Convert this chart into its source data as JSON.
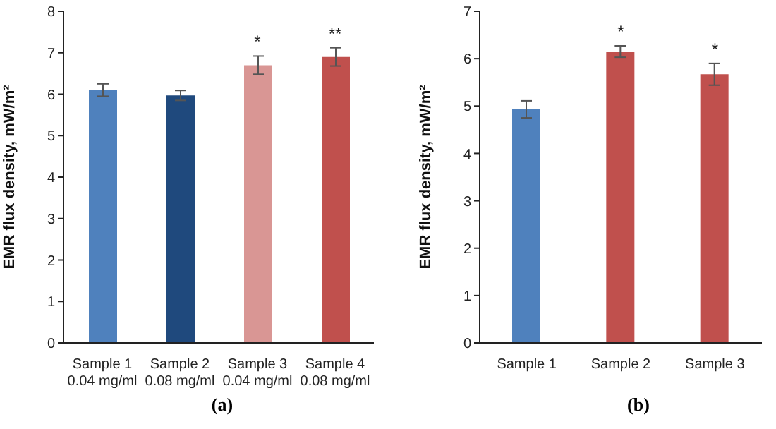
{
  "chart_data": [
    {
      "type": "bar",
      "ylabel": "EMR flux density, mW/m²",
      "categories": [
        "Sample 1\n0.04 mg/ml",
        "Sample 2\n0.08 mg/ml",
        "Sample 3\n0.04 mg/ml",
        "Sample 4\n0.08 mg/ml"
      ],
      "values": [
        6.1,
        5.97,
        6.7,
        6.9
      ],
      "errors": [
        0.15,
        0.12,
        0.22,
        0.22
      ],
      "colors": [
        "#4f81bd",
        "#1f497d",
        "#d99694",
        "#c0504d"
      ],
      "ylim": [
        0,
        8
      ],
      "yticks": [
        0,
        1,
        2,
        3,
        4,
        5,
        6,
        7,
        8
      ],
      "grid": false,
      "legend": false,
      "annotations": [
        "(a)",
        {
          "text": "*",
          "x": "Sample 3\n0.04 mg/ml",
          "y": 6.7
        },
        {
          "text": "**",
          "x": "Sample 4\n0.08 mg/ml",
          "y": 6.9
        }
      ]
    },
    {
      "type": "bar",
      "ylabel": "EMR flux density, mW/m²",
      "categories": [
        "Sample 1",
        "Sample 2",
        "Sample 3"
      ],
      "values": [
        4.93,
        6.15,
        5.67
      ],
      "errors": [
        0.18,
        0.12,
        0.23
      ],
      "colors": [
        "#4f81bd",
        "#c0504d",
        "#c0504d"
      ],
      "ylim": [
        0,
        7
      ],
      "yticks": [
        0,
        1,
        2,
        3,
        4,
        5,
        6,
        7
      ],
      "grid": false,
      "legend": false,
      "annotations": [
        "(b)",
        {
          "text": "*",
          "x": "Sample 2",
          "y": 6.15
        },
        {
          "text": "*",
          "x": "Sample 3",
          "y": 5.67
        }
      ]
    }
  ]
}
